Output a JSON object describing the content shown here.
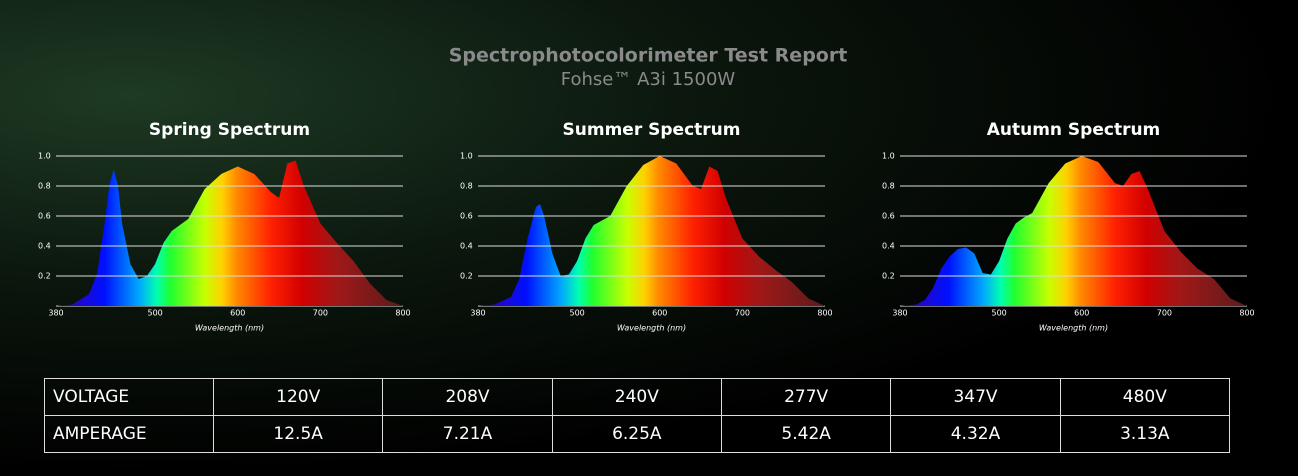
{
  "header": {
    "title": "Spectrophotocolorimeter Test Report",
    "subtitle": "Fohse™ A3i 1500W"
  },
  "chart_data": [
    {
      "type": "area",
      "title": "Spring Spectrum",
      "x_label": "Wavelength (nm)",
      "xlim": [
        380,
        800
      ],
      "xticks": [
        380,
        500,
        600,
        700,
        800
      ],
      "ylim": [
        0,
        1
      ],
      "yticks": [
        0.2,
        0.4,
        0.6,
        0.8,
        {
          "value": 1,
          "label": "1.0"
        }
      ],
      "grid": true,
      "x": [
        380,
        400,
        420,
        430,
        440,
        445,
        450,
        455,
        460,
        470,
        480,
        490,
        500,
        510,
        520,
        530,
        540,
        550,
        560,
        580,
        600,
        620,
        640,
        650,
        660,
        670,
        680,
        700,
        720,
        740,
        760,
        780,
        800
      ],
      "values": [
        0,
        0.01,
        0.08,
        0.22,
        0.6,
        0.82,
        0.91,
        0.8,
        0.55,
        0.28,
        0.18,
        0.2,
        0.28,
        0.42,
        0.5,
        0.54,
        0.58,
        0.68,
        0.78,
        0.88,
        0.93,
        0.88,
        0.76,
        0.72,
        0.95,
        0.97,
        0.8,
        0.55,
        0.42,
        0.3,
        0.15,
        0.04,
        0
      ]
    },
    {
      "type": "area",
      "title": "Summer Spectrum",
      "x_label": "Wavelength (nm)",
      "xlim": [
        380,
        800
      ],
      "xticks": [
        380,
        500,
        600,
        700,
        800
      ],
      "ylim": [
        0,
        1
      ],
      "yticks": [
        0.2,
        0.4,
        0.6,
        0.8,
        {
          "value": 1,
          "label": "1.0"
        }
      ],
      "grid": true,
      "x": [
        380,
        400,
        420,
        430,
        440,
        450,
        455,
        460,
        470,
        480,
        490,
        500,
        510,
        520,
        530,
        540,
        550,
        560,
        580,
        600,
        620,
        640,
        650,
        660,
        670,
        680,
        700,
        720,
        740,
        760,
        780,
        800
      ],
      "values": [
        0,
        0.01,
        0.06,
        0.18,
        0.45,
        0.66,
        0.68,
        0.6,
        0.35,
        0.2,
        0.21,
        0.3,
        0.45,
        0.54,
        0.57,
        0.6,
        0.7,
        0.8,
        0.94,
        1.0,
        0.95,
        0.8,
        0.78,
        0.93,
        0.9,
        0.72,
        0.45,
        0.33,
        0.24,
        0.16,
        0.05,
        0
      ]
    },
    {
      "type": "area",
      "title": "Autumn Spectrum",
      "x_label": "Wavelength (nm)",
      "xlim": [
        380,
        800
      ],
      "xticks": [
        380,
        500,
        600,
        700,
        800
      ],
      "ylim": [
        0,
        1
      ],
      "yticks": [
        0.2,
        0.4,
        0.6,
        0.8,
        {
          "value": 1,
          "label": "1.0"
        }
      ],
      "grid": true,
      "x": [
        380,
        400,
        410,
        420,
        430,
        440,
        450,
        460,
        470,
        480,
        490,
        500,
        510,
        520,
        530,
        540,
        550,
        560,
        580,
        600,
        620,
        640,
        650,
        660,
        670,
        680,
        700,
        720,
        740,
        760,
        780,
        800
      ],
      "values": [
        0,
        0.01,
        0.04,
        0.12,
        0.25,
        0.33,
        0.38,
        0.39,
        0.35,
        0.22,
        0.21,
        0.3,
        0.45,
        0.55,
        0.59,
        0.62,
        0.72,
        0.82,
        0.95,
        1.0,
        0.96,
        0.82,
        0.8,
        0.88,
        0.9,
        0.78,
        0.5,
        0.36,
        0.25,
        0.18,
        0.05,
        0
      ]
    }
  ],
  "table": {
    "rows": [
      [
        "VOLTAGE",
        "120V",
        "208V",
        "240V",
        "277V",
        "347V",
        "480V"
      ],
      [
        "AMPERAGE",
        "12.5A",
        "7.21A",
        "6.25A",
        "5.42A",
        "4.32A",
        "3.13A"
      ]
    ]
  }
}
